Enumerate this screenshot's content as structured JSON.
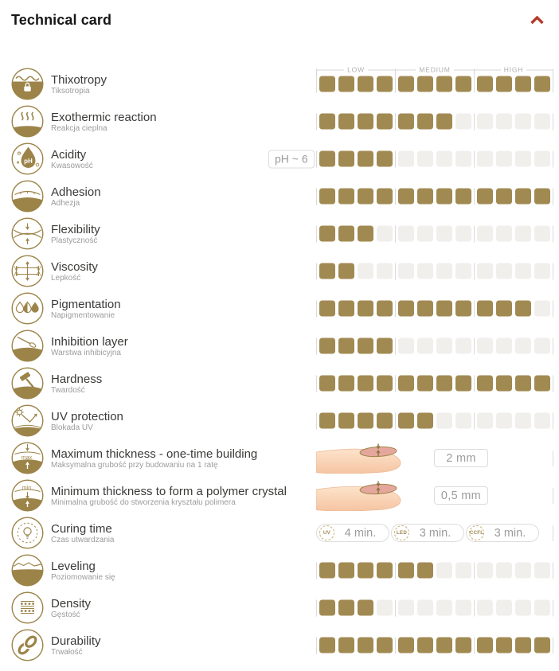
{
  "header": {
    "title": "Technical card"
  },
  "theme": {
    "accent": "#b23b2a",
    "filled_square": "#a18a52",
    "empty_square": "#f0efec",
    "icon_gold": "#9c8449"
  },
  "scale": {
    "labels": [
      "LOW",
      "MEDIUM",
      "HIGH"
    ],
    "max_squares": 12
  },
  "rows": [
    {
      "id": "thixotropy",
      "icon": "thixotropy-icon",
      "label": "Thixotropy",
      "label_pl": "Tiksotropia",
      "type": "rating",
      "value": 12,
      "show_scale_header": true
    },
    {
      "id": "exothermic-reaction",
      "icon": "exothermic-reaction-icon",
      "label": "Exothermic reaction",
      "label_pl": "Reakcja cieplna",
      "type": "rating",
      "value": 7
    },
    {
      "id": "acidity",
      "icon": "acidity-icon",
      "label": "Acidity",
      "label_pl": "Kwasowość",
      "type": "rating",
      "value": 4,
      "badge": "pH ~ 6"
    },
    {
      "id": "adhesion",
      "icon": "adhesion-icon",
      "label": "Adhesion",
      "label_pl": "Adhezja",
      "type": "rating",
      "value": 12
    },
    {
      "id": "flexibility",
      "icon": "flexibility-icon",
      "label": "Flexibility",
      "label_pl": "Plastyczność",
      "type": "rating",
      "value": 3
    },
    {
      "id": "viscosity",
      "icon": "viscosity-icon",
      "label": "Viscosity",
      "label_pl": "Lepkość",
      "type": "rating",
      "value": 2
    },
    {
      "id": "pigmentation",
      "icon": "pigmentation-icon",
      "label": "Pigmentation",
      "label_pl": "Napigmentowanie",
      "type": "rating",
      "value": 11
    },
    {
      "id": "inhibition-layer",
      "icon": "inhibition-layer-icon",
      "label": "Inhibition layer",
      "label_pl": "Warstwa inhibicyjna",
      "type": "rating",
      "value": 4
    },
    {
      "id": "hardness",
      "icon": "hardness-icon",
      "label": "Hardness",
      "label_pl": "Twardość",
      "type": "rating",
      "value": 12
    },
    {
      "id": "uv-protection",
      "icon": "uv-protection-icon",
      "label": "UV protection",
      "label_pl": "Blokada UV",
      "type": "rating",
      "value": 6
    },
    {
      "id": "maximum-thickness",
      "icon": "max-thickness-icon",
      "label": "Maximum thickness - one-time building",
      "label_pl": "Maksymalna grubość przy budowaniu na 1 ratę",
      "type": "measurement",
      "value_text": "2 mm"
    },
    {
      "id": "minimum-thickness",
      "icon": "min-thickness-icon",
      "label": "Minimum thickness to form a polymer crystal",
      "label_pl": "Minimalna grubość do stworzenia kryształu polimera",
      "type": "measurement",
      "value_text": "0,5 mm"
    },
    {
      "id": "curing-time",
      "icon": "curing-time-icon",
      "label": "Curing time",
      "label_pl": "Czas utwardzania",
      "type": "curing",
      "times": [
        {
          "lamp": "UV",
          "time": "4 min."
        },
        {
          "lamp": "LED",
          "time": "3 min."
        },
        {
          "lamp": "CCFL",
          "time": "3 min."
        }
      ]
    },
    {
      "id": "leveling",
      "icon": "leveling-icon",
      "label": "Leveling",
      "label_pl": "Poziomowanie się",
      "type": "rating",
      "value": 6
    },
    {
      "id": "density",
      "icon": "density-icon",
      "label": "Density",
      "label_pl": "Gęstość",
      "type": "rating",
      "value": 3
    },
    {
      "id": "durability",
      "icon": "durability-icon",
      "label": "Durability",
      "label_pl": "Trwałość",
      "type": "rating",
      "value": 12
    }
  ]
}
